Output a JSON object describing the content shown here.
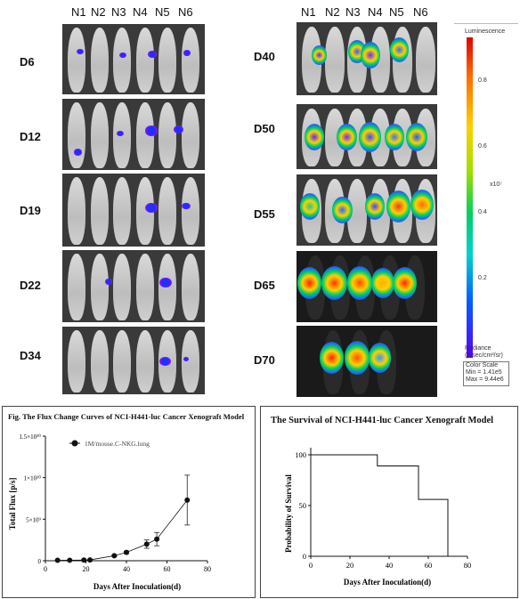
{
  "bli": {
    "columns": [
      "N1",
      "N2",
      "N3",
      "N4",
      "N5",
      "N6"
    ],
    "left_days": [
      "D6",
      "D12",
      "D19",
      "D22",
      "D34"
    ],
    "right_days": [
      "D40",
      "D50",
      "D55",
      "D65",
      "D70"
    ]
  },
  "colorbar": {
    "title": "Luminescence",
    "ticks": [
      "0.8",
      "0.6",
      "0.4",
      "0.2"
    ],
    "exponent": "x10⁷",
    "radiance_label": "Radiance",
    "radiance_units": "(p/sec/cm²/sr)",
    "scale_title": "Color Scale",
    "scale_min": "Min = 1.41e5",
    "scale_max": "Max = 9.44e6"
  },
  "flux_chart": {
    "title": "Fig. The Flux Change Curves of NCI-H441-luc Cancer Xenograft Model",
    "legend": "1M/mouse.C-NKG.lung",
    "xlabel": "Days After Inoculation(d)",
    "ylabel": "Total Flux [p/s]",
    "xticks": [
      "0",
      "20",
      "40",
      "60",
      "80"
    ],
    "yticks": [
      "0",
      "5×10⁹",
      "1×10¹⁰",
      "1.5×10¹⁰"
    ]
  },
  "survival_chart": {
    "title": "The Survival of NCI-H441-luc Cancer Xenograft Model",
    "xlabel": "Days After Inoculation(d)",
    "ylabel": "Probability of Survival",
    "xticks": [
      "0",
      "20",
      "40",
      "60",
      "80"
    ],
    "yticks": [
      "0",
      "50",
      "100"
    ]
  },
  "chart_data": [
    {
      "type": "line",
      "title": "Fig. The Flux Change Curves of NCI-H441-luc Cancer Xenograft Model",
      "xlabel": "Days After Inoculation(d)",
      "ylabel": "Total Flux [p/s]",
      "xlim": [
        0,
        80
      ],
      "ylim": [
        0,
        15000000000
      ],
      "series": [
        {
          "name": "1M/mouse.C-NKG.lung",
          "x": [
            6,
            12,
            19,
            22,
            34,
            40,
            50,
            55,
            70
          ],
          "y": [
            50000000,
            60000000,
            80000000,
            100000000,
            600000000,
            1000000000,
            2000000000,
            2600000000,
            7300000000
          ],
          "err": [
            10000000,
            10000000,
            20000000,
            30000000,
            100000000,
            150000000,
            500000000,
            800000000,
            3000000000
          ]
        }
      ]
    },
    {
      "type": "line",
      "title": "The Survival of NCI-H441-luc Cancer Xenograft Model",
      "xlabel": "Days After Inoculation(d)",
      "ylabel": "Probability of Survival",
      "xlim": [
        0,
        80
      ],
      "ylim": [
        0,
        100
      ],
      "series": [
        {
          "x": [
            0,
            34,
            34,
            55,
            55,
            70,
            70
          ],
          "y": [
            100,
            100,
            89,
            89,
            56,
            56,
            0
          ]
        }
      ]
    }
  ]
}
